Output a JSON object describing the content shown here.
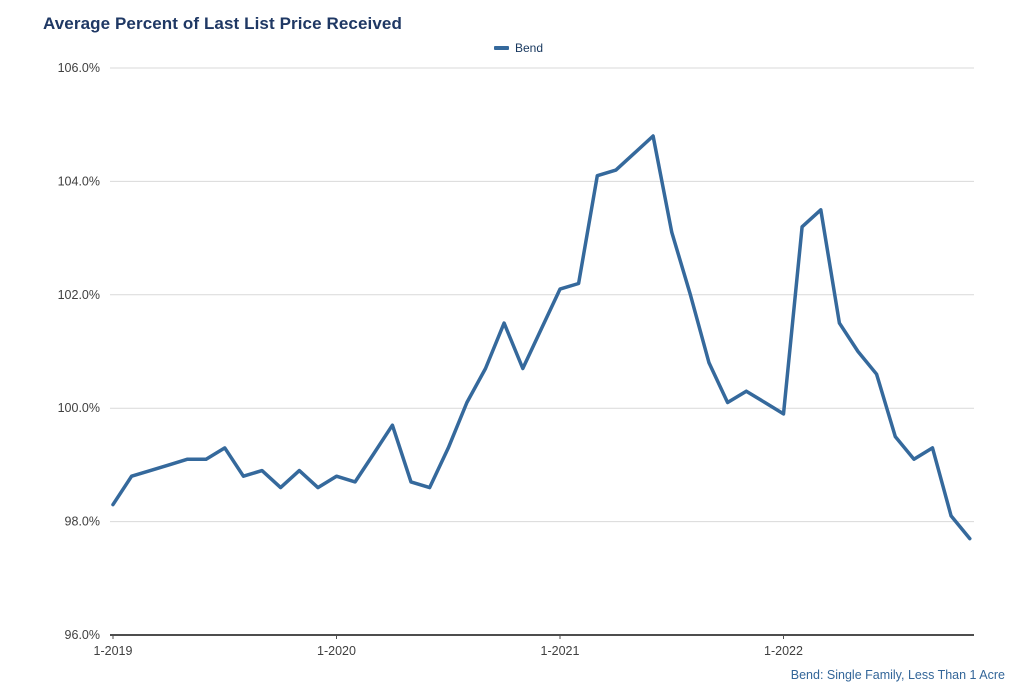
{
  "title": "Average Percent of Last List Price Received",
  "legend": {
    "label": "Bend"
  },
  "footnote": "Bend: Single Family, Less Than 1 Acre",
  "colors": {
    "title": "#1f3864",
    "line": "#35699c",
    "legend_text": "#17375e",
    "footnote": "#336699",
    "grid": "#d9d9d9",
    "axis": "#4d4d4d",
    "tick_text": "#404040"
  },
  "chart_data": {
    "type": "line",
    "title": "Average Percent of Last List Price Received",
    "legend_position": "top",
    "grid": "horizontal",
    "ylabel": "",
    "xlabel": "",
    "ylim": [
      96,
      106
    ],
    "ytick_values": [
      96,
      98,
      100,
      102,
      104,
      106
    ],
    "ytick_labels": [
      "96.0%",
      "98.0%",
      "100.0%",
      "102.0%",
      "104.0%",
      "106.0%"
    ],
    "xtick_labels": [
      "1-2019",
      "1-2020",
      "1-2021",
      "1-2022"
    ],
    "x": [
      "1-2019",
      "2-2019",
      "3-2019",
      "4-2019",
      "5-2019",
      "6-2019",
      "7-2019",
      "8-2019",
      "9-2019",
      "10-2019",
      "11-2019",
      "12-2019",
      "1-2020",
      "2-2020",
      "3-2020",
      "4-2020",
      "5-2020",
      "6-2020",
      "7-2020",
      "8-2020",
      "9-2020",
      "10-2020",
      "11-2020",
      "12-2020",
      "1-2021",
      "2-2021",
      "3-2021",
      "4-2021",
      "5-2021",
      "6-2021",
      "7-2021",
      "8-2021",
      "9-2021",
      "10-2021",
      "11-2021",
      "12-2021",
      "1-2022",
      "2-2022",
      "3-2022",
      "4-2022",
      "5-2022",
      "6-2022",
      "7-2022",
      "8-2022",
      "9-2022",
      "10-2022",
      "11-2022"
    ],
    "series": [
      {
        "name": "Bend",
        "color": "#35699c",
        "values": [
          98.3,
          98.8,
          98.9,
          99.0,
          99.1,
          99.1,
          99.3,
          98.8,
          98.9,
          98.6,
          98.9,
          98.6,
          98.8,
          98.7,
          99.2,
          99.7,
          98.7,
          98.6,
          99.3,
          100.1,
          100.7,
          101.5,
          100.7,
          101.4,
          102.1,
          102.2,
          104.1,
          104.2,
          104.5,
          104.8,
          103.1,
          102.0,
          100.8,
          100.1,
          100.3,
          100.1,
          99.9,
          103.2,
          103.5,
          101.5,
          101.0,
          100.6,
          99.5,
          99.1,
          99.3,
          98.1,
          97.7
        ]
      }
    ]
  }
}
